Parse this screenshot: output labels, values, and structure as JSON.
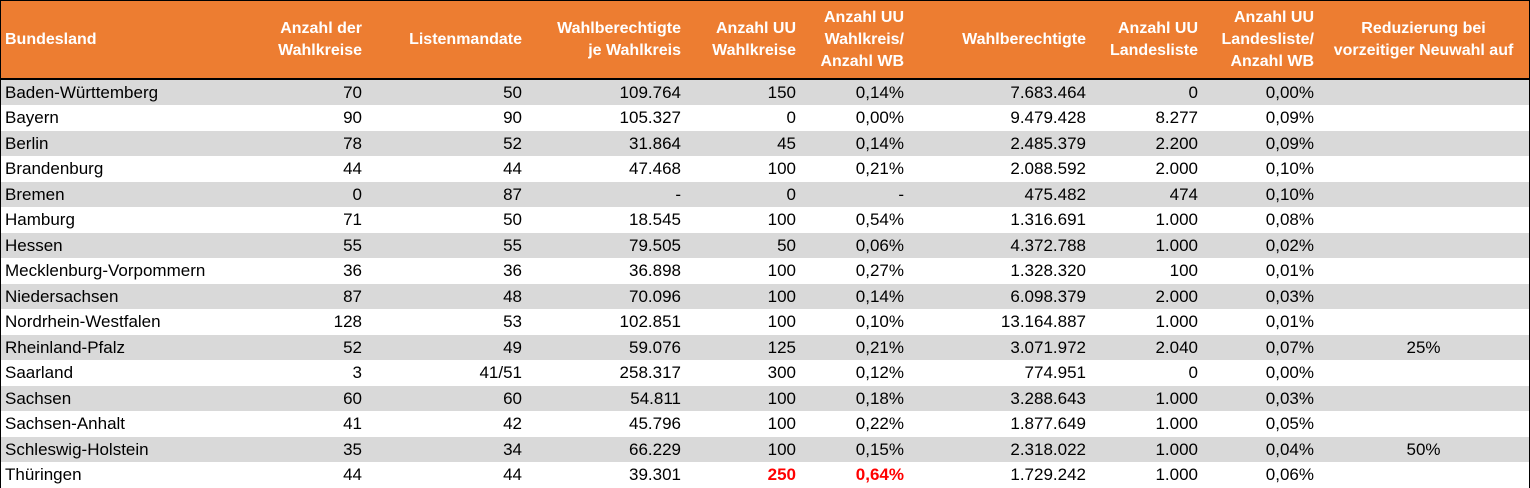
{
  "table": {
    "columns": [
      "Bundesland",
      "Anzahl der Wahlkreise",
      "Listenmandate",
      "Wahlberechtigte je Wahlkreis",
      "Anzahl UU Wahlkreise",
      "Anzahl UU Wahlkreis/ Anzahl WB",
      "Wahlberechtigte",
      "Anzahl UU Landesliste",
      "Anzahl UU Landesliste/ Anzahl WB",
      "Reduzierung bei vorzeitiger Neuwahl auf"
    ],
    "header_lines": [
      [
        "Bundesland"
      ],
      [
        "Anzahl der",
        "Wahlkreise"
      ],
      [
        "Listenmandate"
      ],
      [
        "Wahlberechtigte",
        "je Wahlkreis"
      ],
      [
        "Anzahl UU",
        "Wahlkreise"
      ],
      [
        "Anzahl UU",
        "Wahlkreis/",
        "Anzahl WB"
      ],
      [
        "Wahlberechtigte"
      ],
      [
        "Anzahl UU",
        "Landesliste"
      ],
      [
        "Anzahl UU",
        "Landesliste/",
        "Anzahl WB"
      ],
      [
        "Reduzierung bei",
        "vorzeitiger Neuwahl auf"
      ]
    ],
    "rows": [
      [
        "Baden-Württemberg",
        "70",
        "50",
        "109.764",
        "150",
        "0,14%",
        "7.683.464",
        "0",
        "0,00%",
        ""
      ],
      [
        "Bayern",
        "90",
        "90",
        "105.327",
        "0",
        "0,00%",
        "9.479.428",
        "8.277",
        "0,09%",
        ""
      ],
      [
        "Berlin",
        "78",
        "52",
        "31.864",
        "45",
        "0,14%",
        "2.485.379",
        "2.200",
        "0,09%",
        ""
      ],
      [
        "Brandenburg",
        "44",
        "44",
        "47.468",
        "100",
        "0,21%",
        "2.088.592",
        "2.000",
        "0,10%",
        ""
      ],
      [
        "Bremen",
        "0",
        "87",
        "-",
        "0",
        "-",
        "475.482",
        "474",
        "0,10%",
        ""
      ],
      [
        "Hamburg",
        "71",
        "50",
        "18.545",
        "100",
        "0,54%",
        "1.316.691",
        "1.000",
        "0,08%",
        ""
      ],
      [
        "Hessen",
        "55",
        "55",
        "79.505",
        "50",
        "0,06%",
        "4.372.788",
        "1.000",
        "0,02%",
        ""
      ],
      [
        "Mecklenburg-Vorpommern",
        "36",
        "36",
        "36.898",
        "100",
        "0,27%",
        "1.328.320",
        "100",
        "0,01%",
        ""
      ],
      [
        "Niedersachsen",
        "87",
        "48",
        "70.096",
        "100",
        "0,14%",
        "6.098.379",
        "2.000",
        "0,03%",
        ""
      ],
      [
        "Nordrhein-Westfalen",
        "128",
        "53",
        "102.851",
        "100",
        "0,10%",
        "13.164.887",
        "1.000",
        "0,01%",
        ""
      ],
      [
        "Rheinland-Pfalz",
        "52",
        "49",
        "59.076",
        "125",
        "0,21%",
        "3.071.972",
        "2.040",
        "0,07%",
        "25%"
      ],
      [
        "Saarland",
        "3",
        "41/51",
        "258.317",
        "300",
        "0,12%",
        "774.951",
        "0",
        "0,00%",
        ""
      ],
      [
        "Sachsen",
        "60",
        "60",
        "54.811",
        "100",
        "0,18%",
        "3.288.643",
        "1.000",
        "0,03%",
        ""
      ],
      [
        "Sachsen-Anhalt",
        "41",
        "42",
        "45.796",
        "100",
        "0,22%",
        "1.877.649",
        "1.000",
        "0,05%",
        ""
      ],
      [
        "Schleswig-Holstein",
        "35",
        "34",
        "66.229",
        "100",
        "0,15%",
        "2.318.022",
        "1.000",
        "0,04%",
        "50%"
      ],
      [
        "Thüringen",
        "44",
        "44",
        "39.301",
        "250",
        "0,64%",
        "1.729.242",
        "1.000",
        "0,06%",
        ""
      ]
    ],
    "highlighted_cells": [
      [
        15,
        4
      ],
      [
        15,
        5
      ]
    ],
    "colors": {
      "header_bg": "#ED7D31",
      "header_text": "#FFFFFF",
      "band_odd": "#D9D9D9",
      "band_even": "#FFFFFF",
      "highlight_text": "#FF0000"
    }
  }
}
